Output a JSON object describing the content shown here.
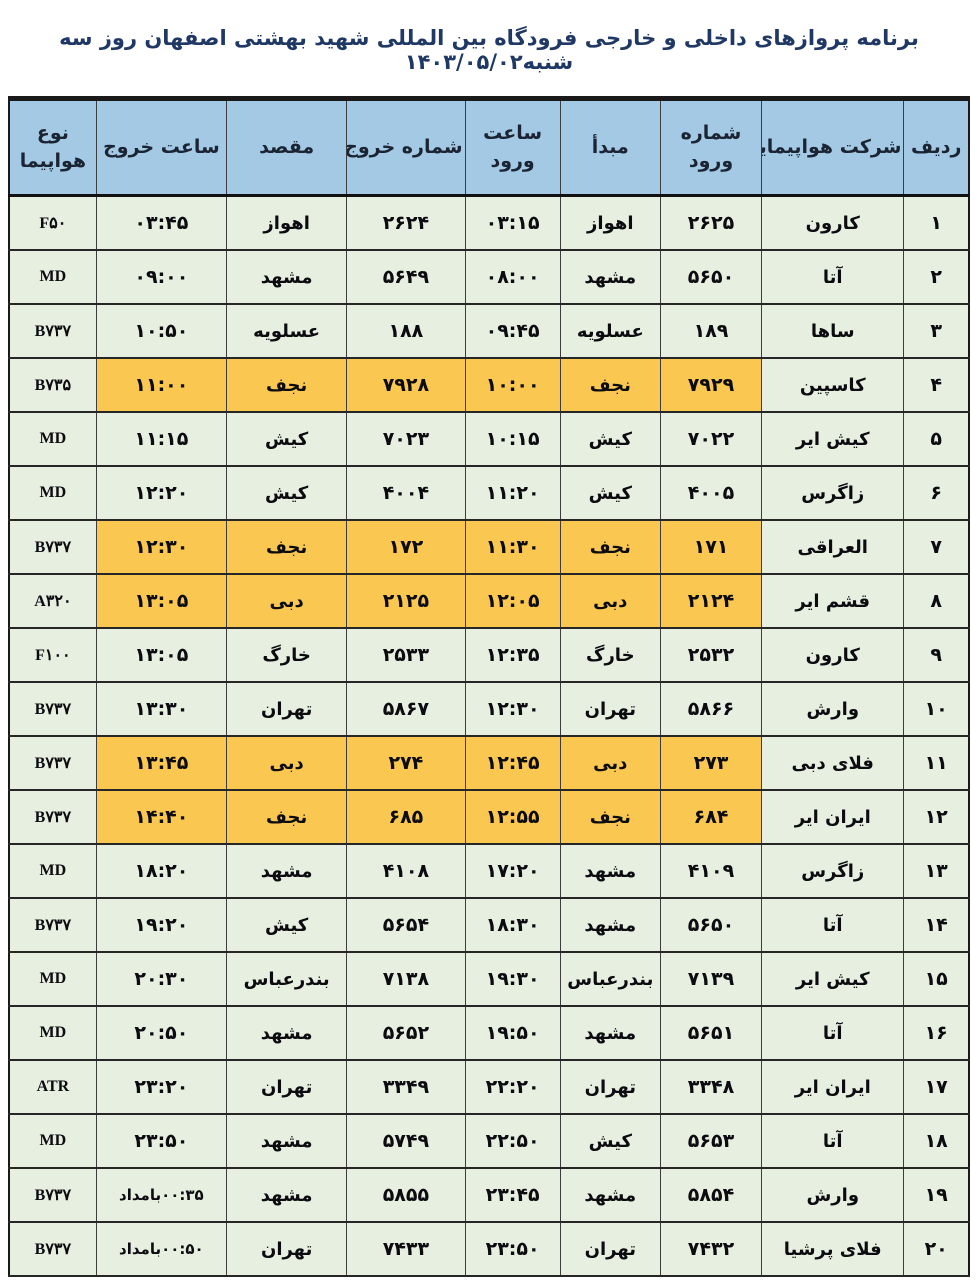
{
  "title": "برنامه پروازهای داخلی و خارجی فرودگاه بین المللی شهید بهشتی اصفهان روز سه شنبه۱۴۰۳/۰۵/۰۲",
  "colors": {
    "title_color": "#1F3864",
    "header_bg": "#A3C9E5",
    "row_bg": "#E7EFE1",
    "highlight_bg": "#FAC850",
    "border_color": "#1a1a1a"
  },
  "table": {
    "headers": [
      {
        "key": "row_no",
        "label": "ردیف"
      },
      {
        "key": "airline",
        "label": "شرکت هواپیمایی"
      },
      {
        "key": "arr_no",
        "label": "شماره\nورود"
      },
      {
        "key": "origin",
        "label": "مبدأ"
      },
      {
        "key": "arr_time",
        "label": "ساعت\nورود"
      },
      {
        "key": "dep_no",
        "label": "شماره خروج"
      },
      {
        "key": "dest",
        "label": "مقصد"
      },
      {
        "key": "dep_time",
        "label": "ساعت خروج"
      },
      {
        "key": "aircraft",
        "label": "نوع\nهواپیما"
      }
    ],
    "highlight_columns": [
      "arr_no",
      "origin",
      "arr_time",
      "dep_no",
      "dest",
      "dep_time"
    ],
    "rows": [
      {
        "row_no": "۱",
        "airline": "کارون",
        "arr_no": "۲۶۲۵",
        "origin": "اهواز",
        "arr_time": "۰۳:۱۵",
        "dep_no": "۲۶۲۴",
        "dest": "اهواز",
        "dep_time": "۰۳:۴۵",
        "aircraft": "F۵۰",
        "highlight": false
      },
      {
        "row_no": "۲",
        "airline": "آتا",
        "arr_no": "۵۶۵۰",
        "origin": "مشهد",
        "arr_time": "۰۸:۰۰",
        "dep_no": "۵۶۴۹",
        "dest": "مشهد",
        "dep_time": "۰۹:۰۰",
        "aircraft": "MD",
        "highlight": false
      },
      {
        "row_no": "۳",
        "airline": "ساها",
        "arr_no": "۱۸۹",
        "origin": "عسلویه",
        "arr_time": "۰۹:۴۵",
        "dep_no": "۱۸۸",
        "dest": "عسلویه",
        "dep_time": "۱۰:۵۰",
        "aircraft": "B۷۳۷",
        "highlight": false
      },
      {
        "row_no": "۴",
        "airline": "کاسپین",
        "arr_no": "۷۹۲۹",
        "origin": "نجف",
        "arr_time": "۱۰:۰۰",
        "dep_no": "۷۹۲۸",
        "dest": "نجف",
        "dep_time": "۱۱:۰۰",
        "aircraft": "B۷۳۵",
        "highlight": true
      },
      {
        "row_no": "۵",
        "airline": "کیش ایر",
        "arr_no": "۷۰۲۲",
        "origin": "کیش",
        "arr_time": "۱۰:۱۵",
        "dep_no": "۷۰۲۳",
        "dest": "کیش",
        "dep_time": "۱۱:۱۵",
        "aircraft": "MD",
        "highlight": false
      },
      {
        "row_no": "۶",
        "airline": "زاگرس",
        "arr_no": "۴۰۰۵",
        "origin": "کیش",
        "arr_time": "۱۱:۲۰",
        "dep_no": "۴۰۰۴",
        "dest": "کیش",
        "dep_time": "۱۲:۲۰",
        "aircraft": "MD",
        "highlight": false
      },
      {
        "row_no": "۷",
        "airline": "العراقی",
        "arr_no": "۱۷۱",
        "origin": "نجف",
        "arr_time": "۱۱:۳۰",
        "dep_no": "۱۷۲",
        "dest": "نجف",
        "dep_time": "۱۲:۳۰",
        "aircraft": "B۷۳۷",
        "highlight": true
      },
      {
        "row_no": "۸",
        "airline": "قشم ایر",
        "arr_no": "۲۱۲۴",
        "origin": "دبی",
        "arr_time": "۱۲:۰۵",
        "dep_no": "۲۱۲۵",
        "dest": "دبی",
        "dep_time": "۱۳:۰۵",
        "aircraft": "A۳۲۰",
        "highlight": true
      },
      {
        "row_no": "۹",
        "airline": "کارون",
        "arr_no": "۲۵۳۲",
        "origin": "خارگ",
        "arr_time": "۱۲:۳۵",
        "dep_no": "۲۵۳۳",
        "dest": "خارگ",
        "dep_time": "۱۳:۰۵",
        "aircraft": "F۱۰۰",
        "highlight": false
      },
      {
        "row_no": "۱۰",
        "airline": "وارش",
        "arr_no": "۵۸۶۶",
        "origin": "تهران",
        "arr_time": "۱۲:۳۰",
        "dep_no": "۵۸۶۷",
        "dest": "تهران",
        "dep_time": "۱۳:۳۰",
        "aircraft": "B۷۳۷",
        "highlight": false
      },
      {
        "row_no": "۱۱",
        "airline": "فلای دبی",
        "arr_no": "۲۷۳",
        "origin": "دبی",
        "arr_time": "۱۲:۴۵",
        "dep_no": "۲۷۴",
        "dest": "دبی",
        "dep_time": "۱۳:۴۵",
        "aircraft": "B۷۳۷",
        "highlight": true
      },
      {
        "row_no": "۱۲",
        "airline": "ایران ایر",
        "arr_no": "۶۸۴",
        "origin": "نجف",
        "arr_time": "۱۲:۵۵",
        "dep_no": "۶۸۵",
        "dest": "نجف",
        "dep_time": "۱۴:۴۰",
        "aircraft": "B۷۳۷",
        "highlight": true
      },
      {
        "row_no": "۱۳",
        "airline": "زاگرس",
        "arr_no": "۴۱۰۹",
        "origin": "مشهد",
        "arr_time": "۱۷:۲۰",
        "dep_no": "۴۱۰۸",
        "dest": "مشهد",
        "dep_time": "۱۸:۲۰",
        "aircraft": "MD",
        "highlight": false
      },
      {
        "row_no": "۱۴",
        "airline": "آتا",
        "arr_no": "۵۶۵۰",
        "origin": "مشهد",
        "arr_time": "۱۸:۳۰",
        "dep_no": "۵۶۵۴",
        "dest": "کیش",
        "dep_time": "۱۹:۲۰",
        "aircraft": "B۷۳۷",
        "highlight": false
      },
      {
        "row_no": "۱۵",
        "airline": "کیش ایر",
        "arr_no": "۷۱۳۹",
        "origin": "بندرعباس",
        "arr_time": "۱۹:۳۰",
        "dep_no": "۷۱۳۸",
        "dest": "بندرعباس",
        "dep_time": "۲۰:۳۰",
        "aircraft": "MD",
        "highlight": false
      },
      {
        "row_no": "۱۶",
        "airline": "آتا",
        "arr_no": "۵۶۵۱",
        "origin": "مشهد",
        "arr_time": "۱۹:۵۰",
        "dep_no": "۵۶۵۲",
        "dest": "مشهد",
        "dep_time": "۲۰:۵۰",
        "aircraft": "MD",
        "highlight": false
      },
      {
        "row_no": "۱۷",
        "airline": "ایران ایر",
        "arr_no": "۳۳۴۸",
        "origin": "تهران",
        "arr_time": "۲۲:۲۰",
        "dep_no": "۳۳۴۹",
        "dest": "تهران",
        "dep_time": "۲۳:۲۰",
        "aircraft": "ATR",
        "highlight": false
      },
      {
        "row_no": "۱۸",
        "airline": "آتا",
        "arr_no": "۵۶۵۳",
        "origin": "کیش",
        "arr_time": "۲۲:۵۰",
        "dep_no": "۵۷۴۹",
        "dest": "مشهد",
        "dep_time": "۲۳:۵۰",
        "aircraft": "MD",
        "highlight": false
      },
      {
        "row_no": "۱۹",
        "airline": "وارش",
        "arr_no": "۵۸۵۴",
        "origin": "مشهد",
        "arr_time": "۲۳:۴۵",
        "dep_no": "۵۸۵۵",
        "dest": "مشهد",
        "dep_time": "۰۰:۳۵بامداد",
        "aircraft": "B۷۳۷",
        "highlight": false
      },
      {
        "row_no": "۲۰",
        "airline": "فلای پرشیا",
        "arr_no": "۷۴۳۲",
        "origin": "تهران",
        "arr_time": "۲۳:۵۰",
        "dep_no": "۷۴۳۳",
        "dest": "تهران",
        "dep_time": "۰۰:۵۰بامداد",
        "aircraft": "B۷۳۷",
        "highlight": false
      }
    ]
  }
}
